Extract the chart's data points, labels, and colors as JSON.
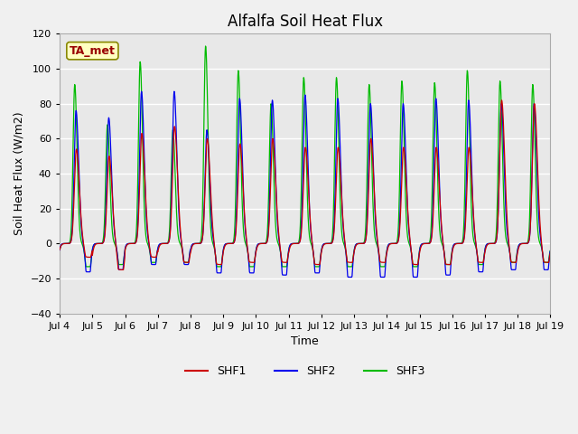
{
  "title": "Alfalfa Soil Heat Flux",
  "ylabel": "Soil Heat Flux (W/m2)",
  "xlabel": "Time",
  "ylim": [
    -40,
    120
  ],
  "yticks": [
    -40,
    -20,
    0,
    20,
    40,
    60,
    80,
    100,
    120
  ],
  "xtick_labels": [
    "Jul 4",
    "Jul 5",
    "Jul 6",
    "Jul 7",
    "Jul 8",
    "Jul 9",
    "Jul 10",
    "Jul 11",
    "Jul 12",
    "Jul 13",
    "Jul 14",
    "Jul 15",
    "Jul 16",
    "Jul 17",
    "Jul 18",
    "Jul 19"
  ],
  "colors": {
    "SHF1": "#cc0000",
    "SHF2": "#0000ee",
    "SHF3": "#00bb00"
  },
  "legend_label": "TA_met",
  "plot_bg": "#e8e8e8",
  "fig_bg": "#f0f0f0",
  "grid_color": "#ffffff",
  "title_fontsize": 12,
  "axis_label_fontsize": 9,
  "tick_fontsize": 8,
  "legend_fontsize": 9,
  "n_days": 15,
  "pts_per_day": 96,
  "shf3_peaks": [
    91,
    68,
    104,
    65,
    113,
    99,
    80,
    95,
    95,
    91,
    93,
    92,
    99,
    93,
    91
  ],
  "shf1_peaks": [
    54,
    50,
    63,
    67,
    60,
    57,
    60,
    55,
    55,
    60,
    55,
    55,
    55,
    82,
    80
  ],
  "shf2_peaks": [
    76,
    72,
    87,
    87,
    65,
    83,
    82,
    85,
    83,
    80,
    80,
    83,
    82,
    80,
    80
  ],
  "shf1_troughs": [
    -13,
    -25,
    -13,
    -18,
    -20,
    -18,
    -18,
    -20,
    -18,
    -18,
    -20,
    -20,
    -18,
    -18,
    -18
  ],
  "shf2_troughs": [
    -27,
    -25,
    -20,
    -20,
    -28,
    -28,
    -30,
    -28,
    -32,
    -32,
    -32,
    -30,
    -27,
    -25,
    -25
  ],
  "shf3_troughs": [
    -22,
    -20,
    -18,
    -18,
    -22,
    -22,
    -22,
    -22,
    -22,
    -22,
    -22,
    -20,
    -20,
    -18,
    -18
  ]
}
